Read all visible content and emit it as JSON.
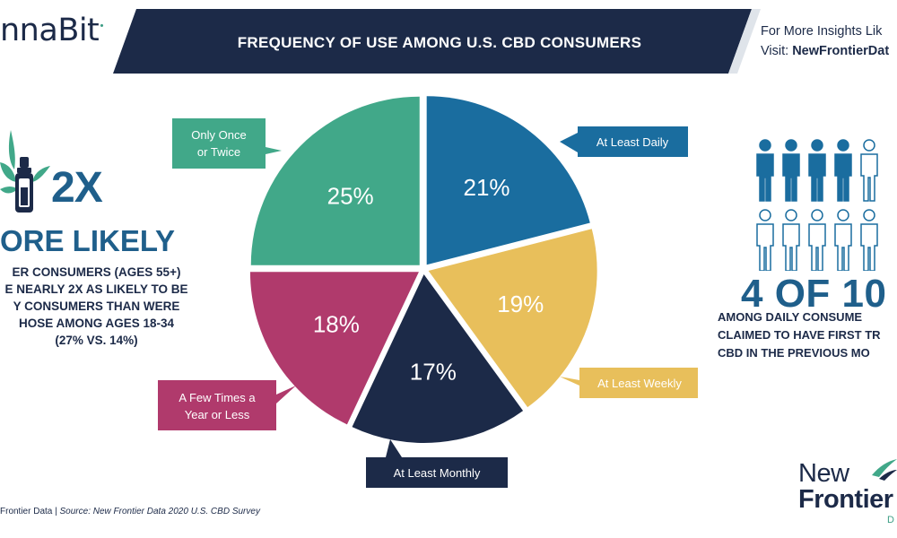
{
  "header": {
    "logo_text": "nnaBit",
    "title": "FREQUENCY OF USE AMONG U.S. CBD CONSUMERS",
    "insight_line1": "For More Insights Lik",
    "insight_prefix": "Visit: ",
    "insight_link": "NewFrontierDat",
    "band_color": "#1c2a48"
  },
  "left_stat": {
    "big": "2X",
    "likely": "ORE LIKELY",
    "lines": [
      "ER CONSUMERS (AGES 55+)",
      "E NEARLY 2X AS LIKELY TO BE",
      "Y CONSUMERS THAN WERE",
      "HOSE AMONG AGES 18-34",
      "(27% VS. 14%)"
    ],
    "icon": "cannabis-dropper-icon"
  },
  "right_stat": {
    "big": "4 OF 10",
    "lines": [
      "AMONG DAILY CONSUME",
      "CLAIMED TO HAVE FIRST TR",
      "CBD IN THE PREVIOUS MO"
    ],
    "icon": "people-icon",
    "highlighted_people": 4,
    "total_people": 10
  },
  "chart_data": {
    "type": "pie",
    "title": "FREQUENCY OF USE AMONG U.S. CBD CONSUMERS",
    "slices": [
      {
        "label": "At Least Daily",
        "value": 21,
        "display": "21%",
        "color": "#1a6d9f"
      },
      {
        "label": "At Least Weekly",
        "value": 19,
        "display": "19%",
        "color": "#e8bf5b"
      },
      {
        "label": "At Least Monthly",
        "value": 17,
        "display": "17%",
        "color": "#1c2a48"
      },
      {
        "label": "A Few Times a Year or Less",
        "value": 18,
        "display": "18%",
        "color": "#b03a6c"
      },
      {
        "label": "Only Once or Twice",
        "value": 25,
        "display": "25%",
        "color": "#41a889"
      }
    ],
    "callouts": {
      "daily": [
        "At Least Daily"
      ],
      "weekly": [
        "At Least Weekly"
      ],
      "monthly": [
        "At Least Monthly"
      ],
      "year": [
        "A Few Times a",
        "Year or Less"
      ],
      "once": [
        "Only Once",
        "or Twice"
      ]
    }
  },
  "footer": {
    "left": "Frontier Data | ",
    "source": "Source: New Frontier Data 2020 U.S. CBD Survey"
  },
  "brand": {
    "line1": "New",
    "line2": "Frontier",
    "small": "D"
  }
}
